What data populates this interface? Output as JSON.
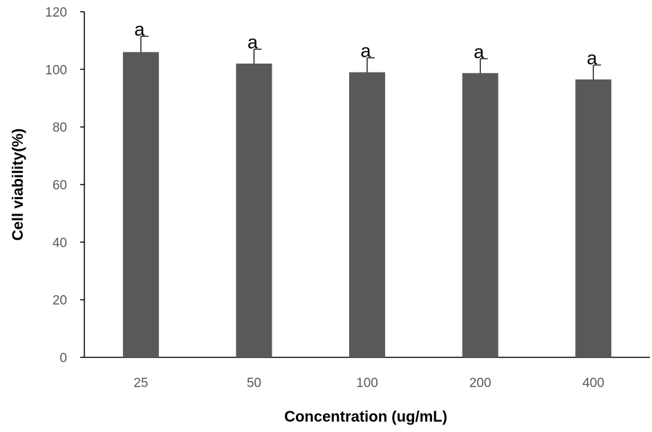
{
  "chart_data": {
    "type": "bar",
    "title": "",
    "xlabel": "Concentration (ug/mL)",
    "ylabel": "Cell viability(%)",
    "categories": [
      "25",
      "50",
      "100",
      "200",
      "400"
    ],
    "values": [
      106,
      102,
      99,
      98.7,
      96.5
    ],
    "errors": [
      5.5,
      5,
      5,
      5,
      5
    ],
    "annotations": [
      "a",
      "a",
      "a",
      "a",
      "a"
    ],
    "ylim": [
      0,
      120
    ],
    "yticks": [
      0,
      20,
      40,
      60,
      80,
      100,
      120
    ],
    "ytick_labels": [
      "0",
      "20",
      "40",
      "60",
      "80",
      "100",
      "120"
    ],
    "grid": false,
    "legend": "none",
    "bar_color": "#595959"
  }
}
